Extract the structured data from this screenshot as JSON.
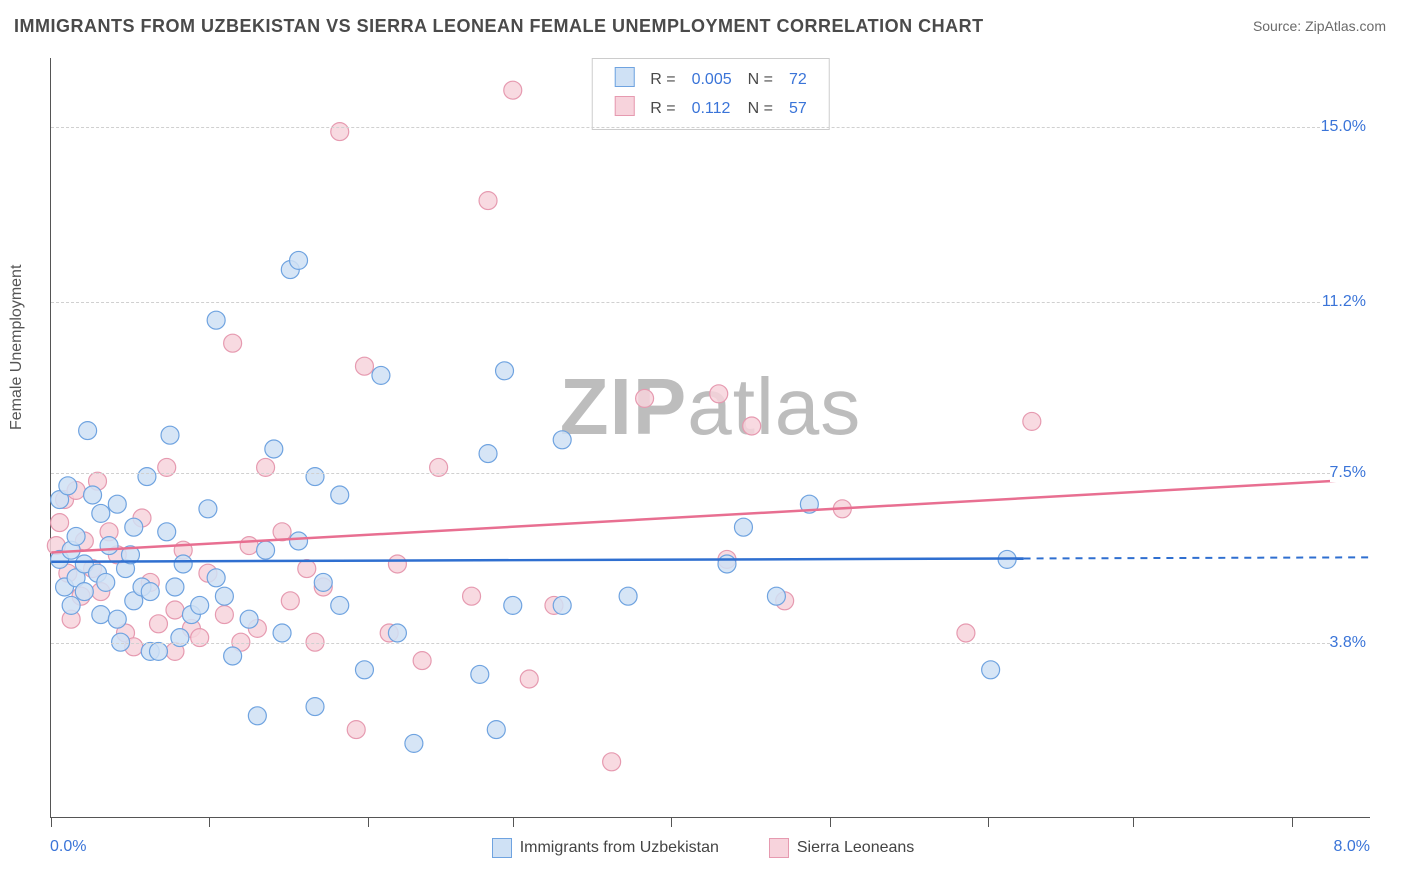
{
  "chart": {
    "type": "scatter-with-trend",
    "title": "IMMIGRANTS FROM UZBEKISTAN VS SIERRA LEONEAN FEMALE UNEMPLOYMENT CORRELATION CHART",
    "source_label": "Source:",
    "source_name": "ZipAtlas.com",
    "ylabel": "Female Unemployment",
    "watermark_zip": "ZIP",
    "watermark_atlas": "atlas",
    "background_color": "#ffffff",
    "axis_color": "#555555",
    "grid_color": "#d0d0d0",
    "title_fontsize": 18,
    "label_fontsize": 16,
    "watermark_fontsize": 80,
    "watermark_color": "#bdbdbd",
    "x": {
      "min": 0.0,
      "max": 8.0,
      "origin_label": "0.0%",
      "max_label": "8.0%",
      "tick_positions_pct": [
        0,
        12,
        24,
        35,
        47,
        59,
        71,
        82,
        94
      ]
    },
    "y": {
      "min": 0.0,
      "max": 16.5,
      "gridlines": [
        {
          "value": 3.8,
          "label": "3.8%"
        },
        {
          "value": 7.5,
          "label": "7.5%"
        },
        {
          "value": 11.2,
          "label": "11.2%"
        },
        {
          "value": 15.0,
          "label": "15.0%"
        }
      ],
      "tick_color": "#3a74d8"
    },
    "series": [
      {
        "key": "uzbekistan",
        "label": "Immigrants from Uzbekistan",
        "fill": "#cfe1f5",
        "stroke": "#6fa3e0",
        "line_color": "#2f6fd0",
        "marker_radius": 9,
        "marker_opacity": 0.85,
        "R": "0.005",
        "N": "72",
        "trend": {
          "x1": 0.0,
          "y1": 5.55,
          "x2": 5.9,
          "y2": 5.62,
          "dashed_extend_to": 8.0
        }
      },
      {
        "key": "sierra",
        "label": "Sierra Leoneans",
        "fill": "#f7d3dc",
        "stroke": "#e69ab0",
        "line_color": "#e86f91",
        "marker_radius": 9,
        "marker_opacity": 0.85,
        "R": "0.112",
        "N": "57",
        "trend": {
          "x1": 0.0,
          "y1": 5.75,
          "x2": 8.0,
          "y2": 7.35
        }
      }
    ],
    "points": {
      "uzbekistan": [
        [
          0.05,
          5.6
        ],
        [
          0.05,
          6.9
        ],
        [
          0.08,
          5.0
        ],
        [
          0.1,
          7.2
        ],
        [
          0.12,
          4.6
        ],
        [
          0.12,
          5.8
        ],
        [
          0.15,
          6.1
        ],
        [
          0.15,
          5.2
        ],
        [
          0.2,
          4.9
        ],
        [
          0.2,
          5.5
        ],
        [
          0.22,
          8.4
        ],
        [
          0.25,
          7.0
        ],
        [
          0.28,
          5.3
        ],
        [
          0.3,
          6.6
        ],
        [
          0.3,
          4.4
        ],
        [
          0.33,
          5.1
        ],
        [
          0.35,
          5.9
        ],
        [
          0.4,
          6.8
        ],
        [
          0.4,
          4.3
        ],
        [
          0.42,
          3.8
        ],
        [
          0.45,
          5.4
        ],
        [
          0.48,
          5.7
        ],
        [
          0.5,
          6.3
        ],
        [
          0.5,
          4.7
        ],
        [
          0.55,
          5.0
        ],
        [
          0.58,
          7.4
        ],
        [
          0.6,
          4.9
        ],
        [
          0.6,
          3.6
        ],
        [
          0.65,
          3.6
        ],
        [
          0.7,
          6.2
        ],
        [
          0.72,
          8.3
        ],
        [
          0.75,
          5.0
        ],
        [
          0.78,
          3.9
        ],
        [
          0.8,
          5.5
        ],
        [
          0.85,
          4.4
        ],
        [
          0.9,
          4.6
        ],
        [
          0.95,
          6.7
        ],
        [
          1.0,
          5.2
        ],
        [
          1.0,
          10.8
        ],
        [
          1.05,
          4.8
        ],
        [
          1.1,
          3.5
        ],
        [
          1.2,
          4.3
        ],
        [
          1.25,
          2.2
        ],
        [
          1.3,
          5.8
        ],
        [
          1.35,
          8.0
        ],
        [
          1.4,
          4.0
        ],
        [
          1.45,
          11.9
        ],
        [
          1.5,
          6.0
        ],
        [
          1.5,
          12.1
        ],
        [
          1.6,
          2.4
        ],
        [
          1.6,
          7.4
        ],
        [
          1.65,
          5.1
        ],
        [
          1.75,
          4.6
        ],
        [
          1.75,
          7.0
        ],
        [
          1.9,
          3.2
        ],
        [
          2.0,
          9.6
        ],
        [
          2.1,
          4.0
        ],
        [
          2.2,
          1.6
        ],
        [
          2.6,
          3.1
        ],
        [
          2.65,
          7.9
        ],
        [
          2.7,
          1.9
        ],
        [
          2.75,
          9.7
        ],
        [
          2.8,
          4.6
        ],
        [
          3.1,
          8.2
        ],
        [
          3.1,
          4.6
        ],
        [
          3.5,
          4.8
        ],
        [
          4.1,
          5.5
        ],
        [
          4.2,
          6.3
        ],
        [
          4.4,
          4.8
        ],
        [
          4.6,
          6.8
        ],
        [
          5.7,
          3.2
        ],
        [
          5.8,
          5.6
        ]
      ],
      "sierra": [
        [
          0.03,
          5.9
        ],
        [
          0.05,
          6.4
        ],
        [
          0.08,
          6.9
        ],
        [
          0.1,
          5.3
        ],
        [
          0.12,
          4.3
        ],
        [
          0.15,
          7.1
        ],
        [
          0.18,
          4.8
        ],
        [
          0.2,
          6.0
        ],
        [
          0.25,
          5.4
        ],
        [
          0.28,
          7.3
        ],
        [
          0.3,
          4.9
        ],
        [
          0.35,
          6.2
        ],
        [
          0.4,
          5.7
        ],
        [
          0.45,
          4.0
        ],
        [
          0.5,
          3.7
        ],
        [
          0.55,
          6.5
        ],
        [
          0.6,
          5.1
        ],
        [
          0.65,
          4.2
        ],
        [
          0.7,
          7.6
        ],
        [
          0.75,
          4.5
        ],
        [
          0.75,
          3.6
        ],
        [
          0.8,
          5.8
        ],
        [
          0.85,
          4.1
        ],
        [
          0.9,
          3.9
        ],
        [
          0.95,
          5.3
        ],
        [
          1.05,
          4.4
        ],
        [
          1.1,
          10.3
        ],
        [
          1.15,
          3.8
        ],
        [
          1.2,
          5.9
        ],
        [
          1.25,
          4.1
        ],
        [
          1.3,
          7.6
        ],
        [
          1.4,
          6.2
        ],
        [
          1.45,
          4.7
        ],
        [
          1.55,
          5.4
        ],
        [
          1.6,
          3.8
        ],
        [
          1.65,
          5.0
        ],
        [
          1.75,
          14.9
        ],
        [
          1.85,
          1.9
        ],
        [
          1.9,
          9.8
        ],
        [
          2.05,
          4.0
        ],
        [
          2.1,
          5.5
        ],
        [
          2.25,
          3.4
        ],
        [
          2.35,
          7.6
        ],
        [
          2.55,
          4.8
        ],
        [
          2.65,
          13.4
        ],
        [
          2.8,
          15.8
        ],
        [
          2.9,
          3.0
        ],
        [
          3.05,
          4.6
        ],
        [
          3.4,
          1.2
        ],
        [
          3.6,
          9.1
        ],
        [
          4.05,
          9.2
        ],
        [
          4.1,
          5.6
        ],
        [
          4.25,
          8.5
        ],
        [
          4.45,
          4.7
        ],
        [
          4.8,
          6.7
        ],
        [
          5.55,
          4.0
        ],
        [
          5.95,
          8.6
        ]
      ]
    },
    "legend": {
      "R_label": "R =",
      "N_label": "N ="
    }
  }
}
